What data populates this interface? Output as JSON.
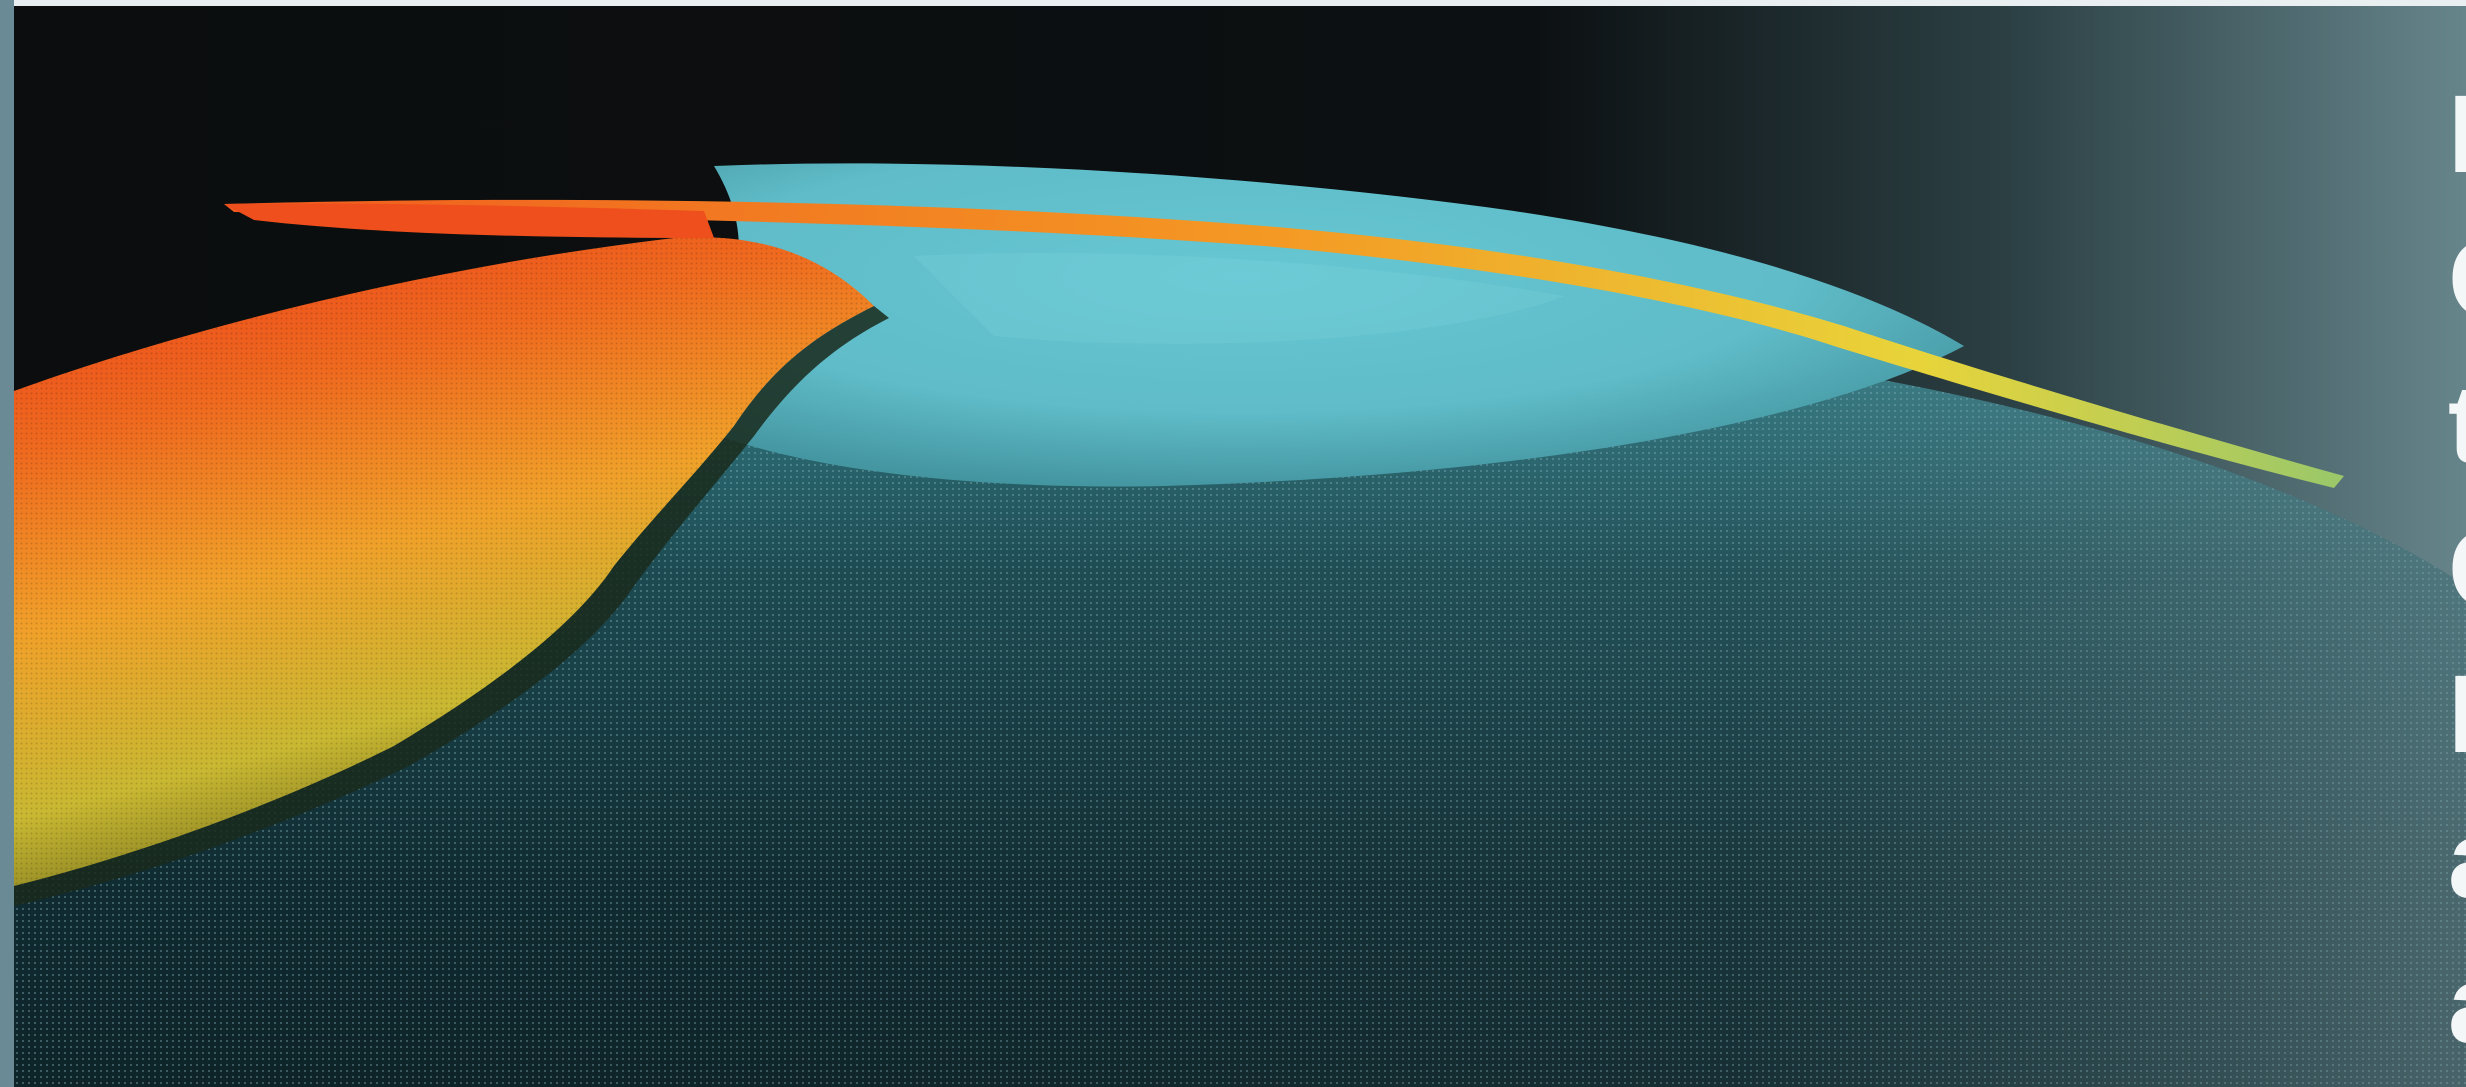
{
  "image": {
    "subject": "seafloor-elevation-point-cloud",
    "colors": {
      "sky": "#0b0d0e",
      "shelf_high": "#e8421a",
      "shelf_mid": "#f0a628",
      "shelf_low": "#c8c83a",
      "plateau": "#63c4d0",
      "foreground": "#0f2b32",
      "frame_bar": "#6a8a96"
    }
  },
  "right_edge_text": [
    "I",
    "C",
    "t",
    "C",
    "I",
    "a",
    "a"
  ]
}
